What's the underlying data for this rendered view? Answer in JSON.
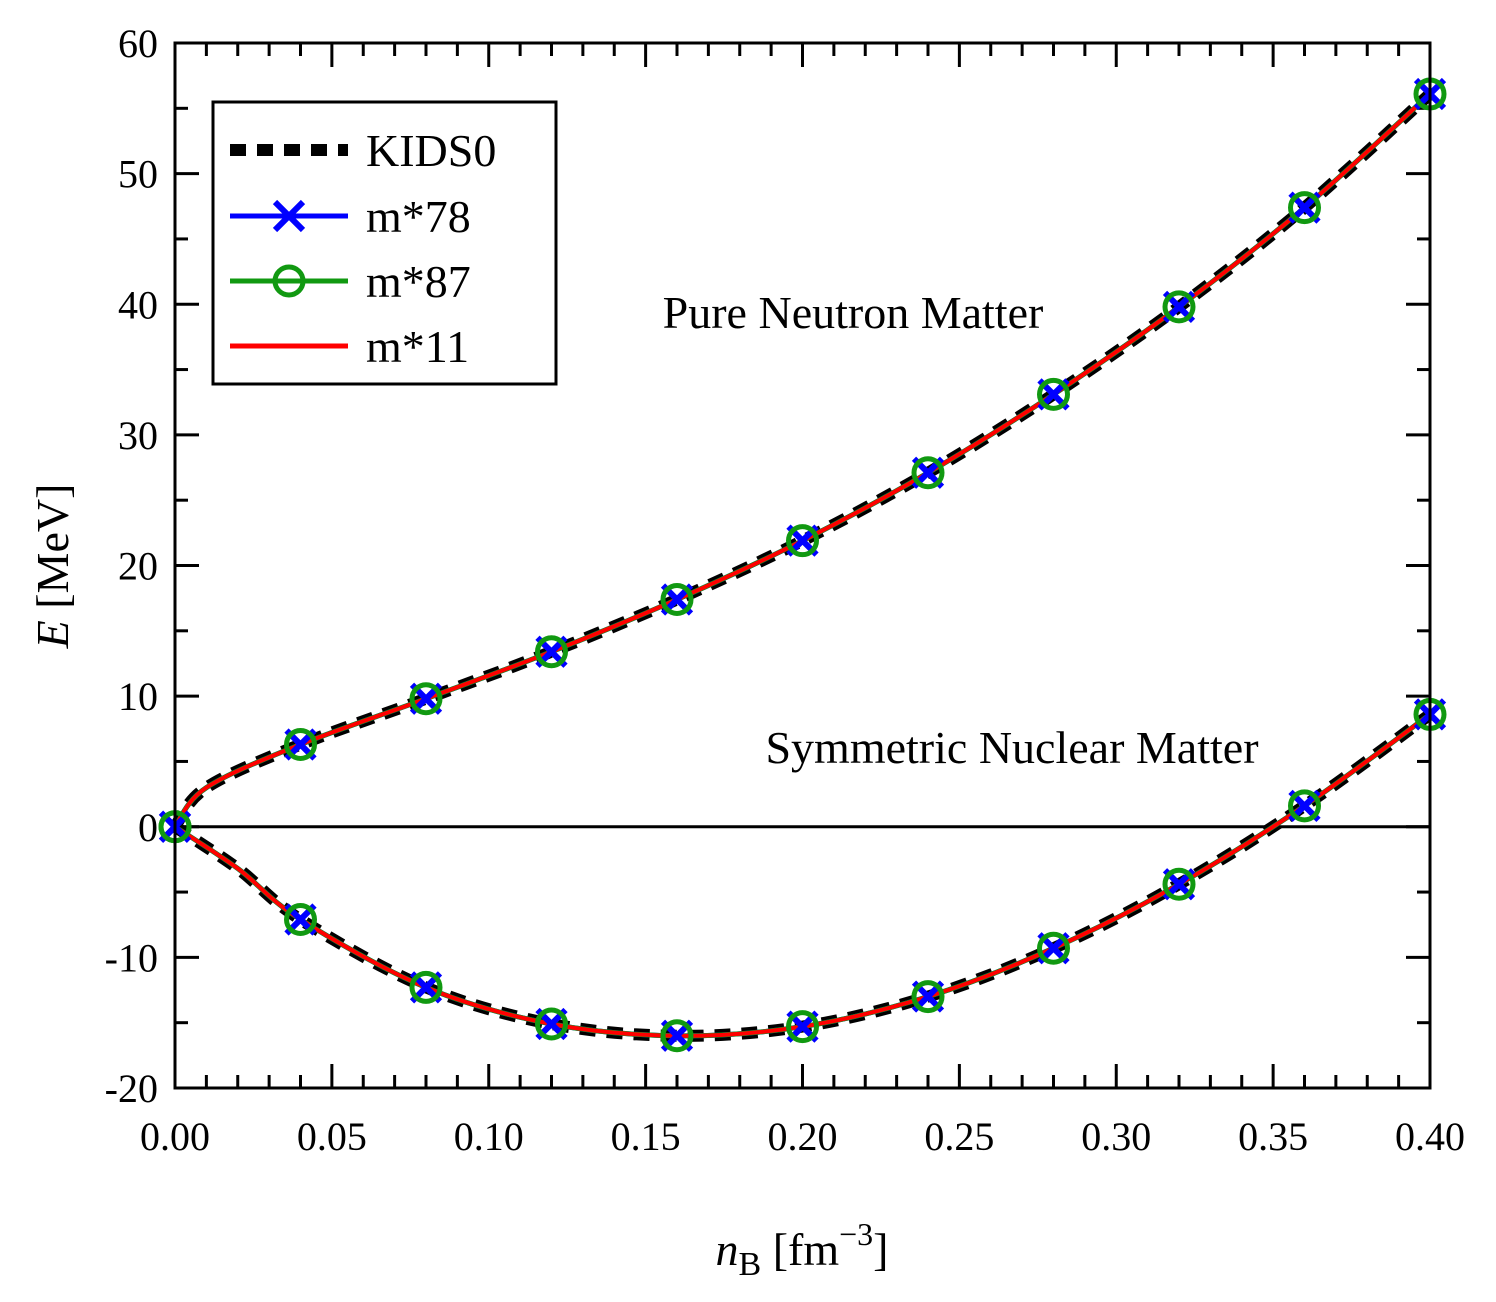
{
  "chart_data": {
    "type": "line",
    "xlabel": {
      "main": "n",
      "sub": "B",
      "unit_open": " [fm",
      "sup": "−3",
      "unit_close": "]"
    },
    "ylabel": {
      "main": "E",
      "unit": " [MeV]"
    },
    "xlim": [
      0.0,
      0.4
    ],
    "ylim": [
      -20,
      60
    ],
    "xticks": [
      "0.00",
      "0.05",
      "0.10",
      "0.15",
      "0.20",
      "0.25",
      "0.30",
      "0.35",
      "0.40"
    ],
    "yticks": [
      "-20",
      "-10",
      "0",
      "10",
      "20",
      "30",
      "40",
      "50",
      "60"
    ],
    "zero_line": true,
    "legend_position": "top-left",
    "annotations": [
      {
        "text": "Pure Neutron Matter",
        "x": 0.2,
        "y": 39
      },
      {
        "text": "Symmetric Nuclear Matter",
        "x": 0.31,
        "y": 6
      }
    ],
    "series": [
      {
        "name": "KIDS0",
        "style": "dashed",
        "color": "#000000",
        "marker": "none"
      },
      {
        "name": "m*78",
        "style": "solid",
        "color": "#0000ff",
        "marker": "x"
      },
      {
        "name": "m*87",
        "style": "solid",
        "color": "#119911",
        "marker": "circle"
      },
      {
        "name": "m*11",
        "style": "solid",
        "color": "#ff0000",
        "marker": "none"
      }
    ],
    "curves": {
      "pure_neutron_matter": {
        "x": [
          0.0,
          0.01,
          0.04,
          0.08,
          0.12,
          0.16,
          0.2,
          0.24,
          0.28,
          0.32,
          0.36,
          0.4
        ],
        "y": [
          0.0,
          3.0,
          6.3,
          9.8,
          13.4,
          17.4,
          21.9,
          27.1,
          33.1,
          39.8,
          47.4,
          56.1
        ]
      },
      "symmetric_nuclear_matter": {
        "x": [
          0.0,
          0.02,
          0.04,
          0.08,
          0.12,
          0.16,
          0.2,
          0.24,
          0.28,
          0.32,
          0.36,
          0.4
        ],
        "y": [
          0.0,
          -3.2,
          -7.1,
          -12.3,
          -15.1,
          -16.0,
          -15.3,
          -13.0,
          -9.3,
          -4.4,
          1.6,
          8.6
        ]
      }
    }
  }
}
